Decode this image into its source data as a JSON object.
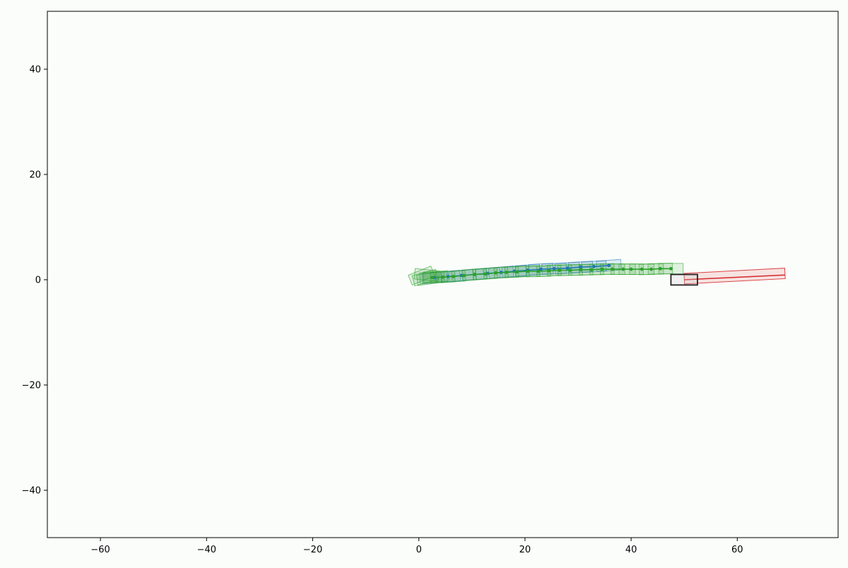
{
  "chart_data": {
    "type": "scatter",
    "title": "",
    "xlabel": "",
    "ylabel": "",
    "xlim": [
      -70,
      79
    ],
    "ylim": [
      -49,
      51
    ],
    "x_ticks": [
      -60,
      -40,
      -20,
      0,
      20,
      40,
      60
    ],
    "x_tick_labels": [
      "−60",
      "−40",
      "−20",
      "0",
      "20",
      "40",
      "60"
    ],
    "y_ticks": [
      -40,
      -20,
      0,
      20,
      40
    ],
    "y_tick_labels": [
      "−40",
      "−20",
      "0",
      "20",
      "40"
    ],
    "grid": false,
    "legend": "none",
    "colors": {
      "background": "#fbfdfb",
      "blue": "#1f77b4",
      "green": "#2ca02c",
      "red": "#d62728",
      "ego": "#222222"
    },
    "series": [
      {
        "color": "blue",
        "points": [
          [
            3.0,
            0.4
          ],
          [
            5.5,
            0.6
          ],
          [
            8.0,
            0.8
          ],
          [
            10.5,
            1.0
          ],
          [
            13.0,
            1.2
          ],
          [
            15.5,
            1.4
          ],
          [
            18.0,
            1.6
          ],
          [
            20.5,
            1.8
          ],
          [
            23.0,
            2.0
          ],
          [
            25.5,
            2.1
          ],
          [
            28.0,
            2.2
          ],
          [
            30.5,
            2.4
          ],
          [
            33.0,
            2.5
          ],
          [
            35.8,
            2.7
          ]
        ]
      },
      {
        "color": "green",
        "points": [
          [
            2.5,
            0.4
          ],
          [
            4.5,
            0.5
          ],
          [
            6.5,
            0.6
          ],
          [
            8.5,
            0.8
          ],
          [
            10.5,
            1.0
          ],
          [
            12.5,
            1.1
          ],
          [
            14.5,
            1.3
          ],
          [
            16.5,
            1.4
          ],
          [
            18.5,
            1.5
          ],
          [
            20.5,
            1.6
          ],
          [
            22.5,
            1.6
          ],
          [
            24.5,
            1.7
          ],
          [
            26.5,
            1.8
          ],
          [
            28.5,
            1.8
          ],
          [
            30.5,
            1.9
          ],
          [
            32.5,
            1.9
          ],
          [
            34.5,
            2.0
          ],
          [
            36.5,
            2.0
          ],
          [
            38.5,
            2.0
          ],
          [
            40.0,
            2.0
          ],
          [
            42.0,
            2.0
          ],
          [
            43.8,
            2.0
          ],
          [
            45.5,
            2.1
          ],
          [
            47.5,
            2.1
          ]
        ]
      }
    ],
    "ego_box": {
      "cx": 50.0,
      "cy": 0.0,
      "length": 5.0,
      "width": 2.0,
      "heading_deg": 0
    },
    "red_box": {
      "cx": 59.5,
      "cy": 0.7,
      "length": 19.0,
      "width": 2.0,
      "heading_deg": 3
    },
    "red_line": [
      [
        50.0,
        0.0
      ],
      [
        69.0,
        0.9
      ]
    ]
  }
}
